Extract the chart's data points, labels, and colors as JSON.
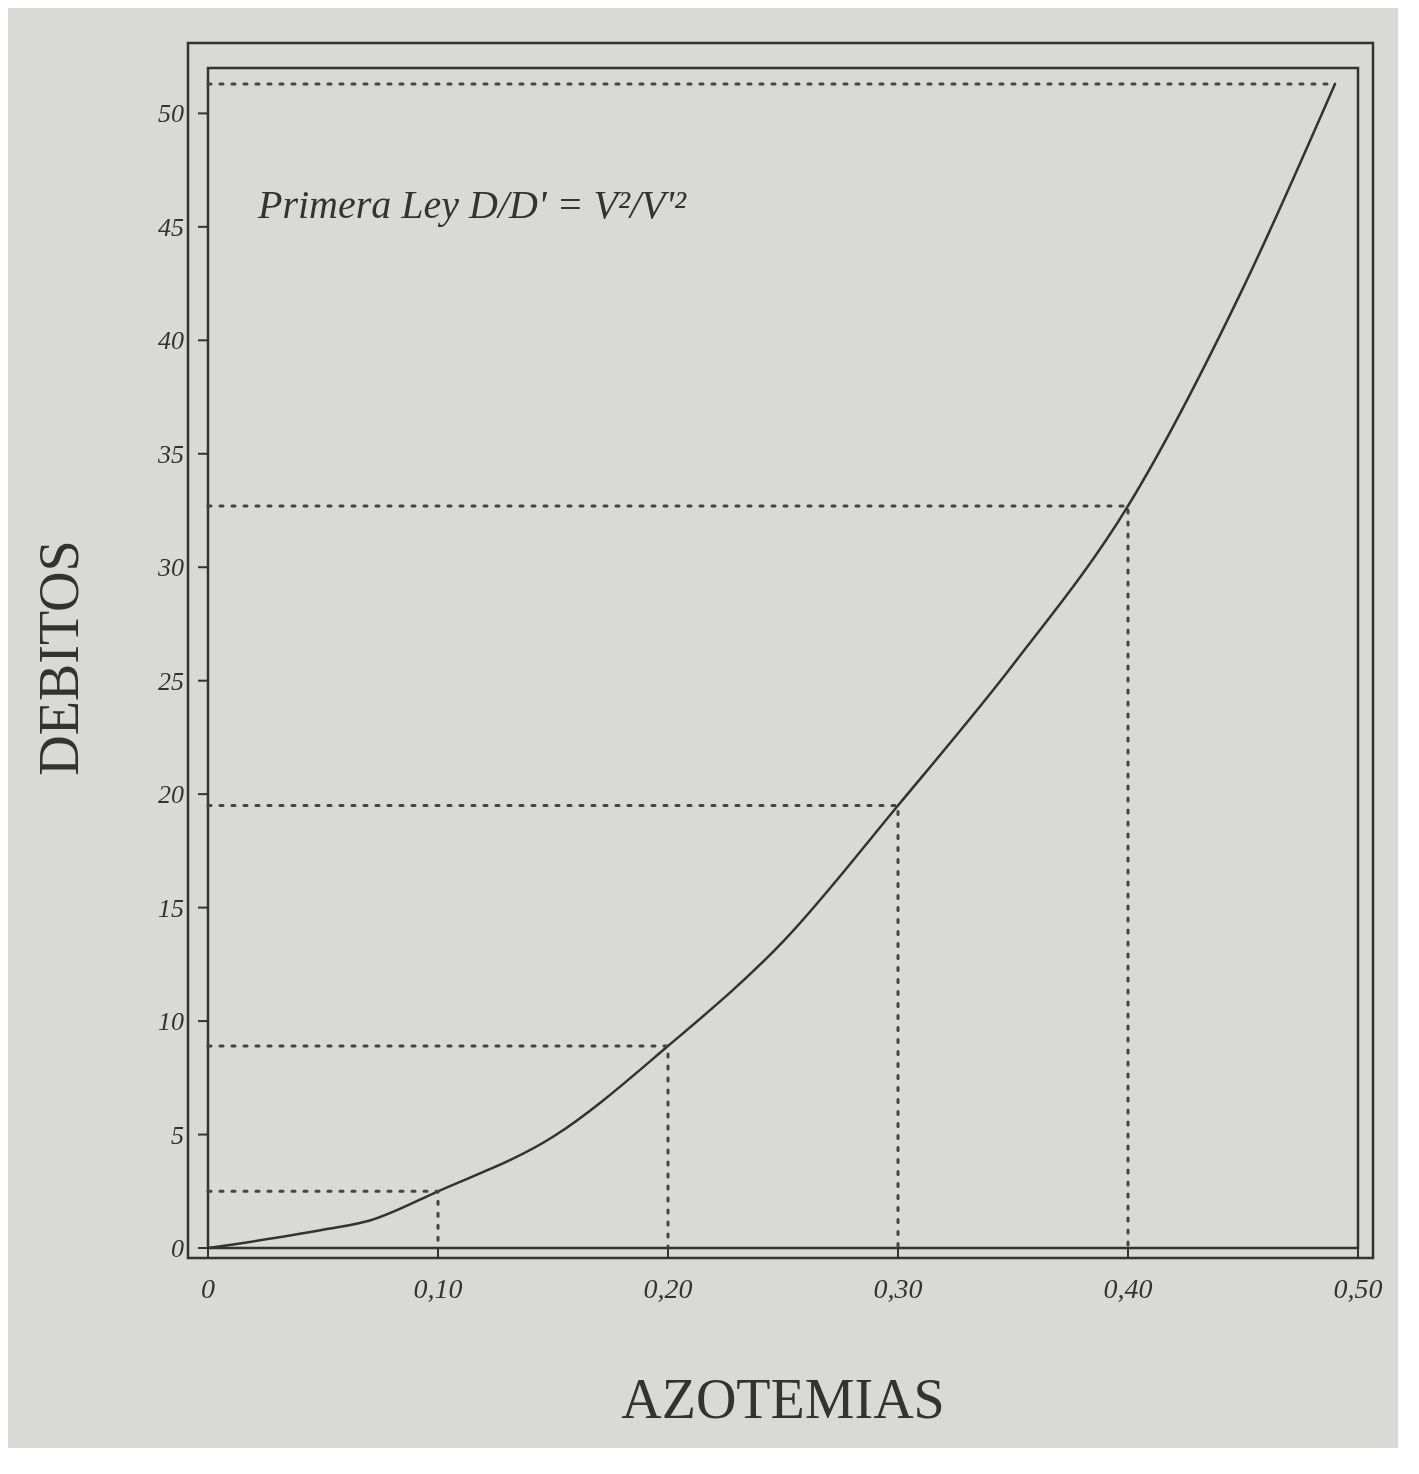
{
  "chart_data": {
    "type": "line",
    "xlabel": "AZOTEMIAS",
    "ylabel": "DEBITOS",
    "annotations": [
      "Primera Ley  D/D' = V²/V'²"
    ],
    "xlim": [
      0,
      0.5
    ],
    "ylim": [
      0,
      52
    ],
    "xticks": [
      0,
      {
        "value": 0.1,
        "label": "0,10"
      },
      {
        "value": 0.2,
        "label": "0,20"
      },
      {
        "value": 0.3,
        "label": "0,30"
      },
      {
        "value": 0.4,
        "label": "0,40"
      },
      {
        "value": 0.5,
        "label": "0,50"
      }
    ],
    "yticks": [
      0,
      5,
      10,
      15,
      20,
      25,
      30,
      35,
      40,
      45,
      50
    ],
    "grid": false,
    "series": [
      {
        "color": "#333333",
        "line_style": "solid",
        "x": [
          0,
          0.05,
          0.07,
          0.1,
          0.15,
          0.2,
          0.25,
          0.3,
          0.35,
          0.4,
          0.45,
          0.49
        ],
        "values": [
          0,
          0.8,
          1.2,
          2.5,
          4.9,
          8.9,
          13.5,
          19.5,
          25.7,
          32.7,
          42.3,
          51.3
        ]
      },
      {
        "color": "#444444",
        "line_style": "dotted",
        "x": [
          0,
          0.1,
          0.1
        ],
        "values": [
          2.5,
          2.5,
          0
        ]
      },
      {
        "color": "#444444",
        "line_style": "dotted",
        "x": [
          0,
          0.2,
          0.2
        ],
        "values": [
          8.9,
          8.9,
          0
        ]
      },
      {
        "color": "#444444",
        "line_style": "dotted",
        "x": [
          0,
          0.3,
          0.3
        ],
        "values": [
          19.5,
          19.5,
          0
        ]
      },
      {
        "color": "#444444",
        "line_style": "dotted",
        "x": [
          0,
          0.4,
          0.4
        ],
        "values": [
          32.7,
          32.7,
          0
        ]
      },
      {
        "color": "#444444",
        "line_style": "dotted",
        "x": [
          0,
          0.49
        ],
        "values": [
          51.3,
          51.3
        ]
      }
    ]
  }
}
